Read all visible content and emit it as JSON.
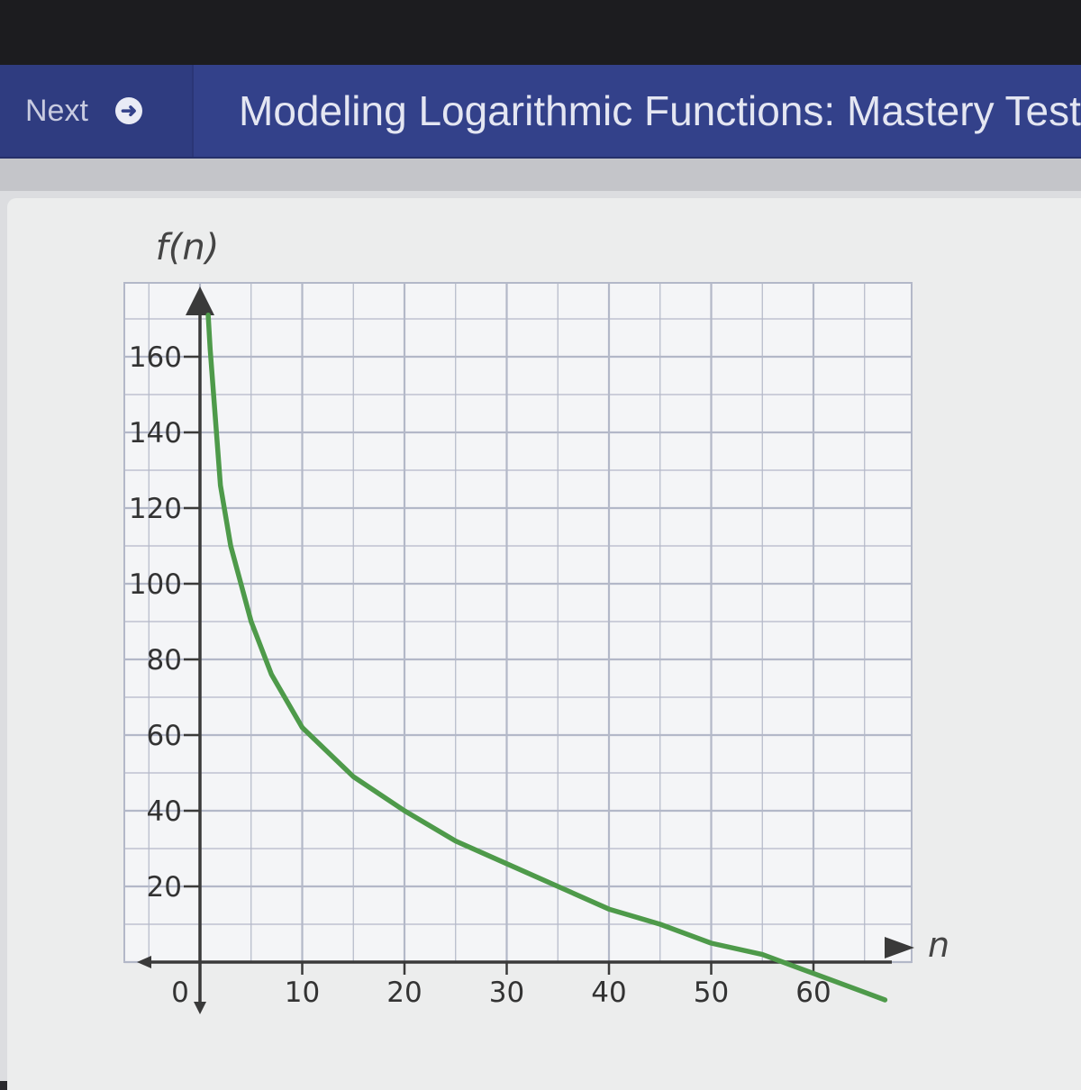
{
  "header": {
    "next_label": "Next",
    "next_icon": "arrow-circle-right-icon",
    "title": "Modeling Logarithmic Functions: Mastery Test"
  },
  "chart_data": {
    "type": "line",
    "xlabel": "n",
    "ylabel": "f(n)",
    "xlim": [
      0,
      70
    ],
    "ylim": [
      0,
      175
    ],
    "x_ticks": [
      "0",
      "10",
      "20",
      "30",
      "40",
      "50",
      "60"
    ],
    "y_ticks": [
      "20",
      "40",
      "60",
      "80",
      "100",
      "120",
      "140",
      "160"
    ],
    "x_ticks_at": [
      0,
      10,
      20,
      30,
      40,
      50,
      60
    ],
    "y_ticks_at": [
      20,
      40,
      60,
      80,
      100,
      120,
      140,
      160
    ],
    "grid": true,
    "minor_grid_step": {
      "x": 5,
      "y": 10
    },
    "series": [
      {
        "color": "#4e9a4a",
        "x": [
          0.8,
          1,
          2,
          3,
          5,
          7,
          10,
          15,
          20,
          25,
          30,
          35,
          40,
          45,
          50,
          55,
          60,
          65,
          67
        ],
        "y": [
          171,
          162,
          126,
          110,
          90,
          76,
          62,
          49,
          40,
          32,
          26,
          20,
          14,
          10,
          5,
          2,
          -3,
          -8,
          -10
        ]
      }
    ]
  },
  "colors": {
    "header_bg": "#33418a",
    "grid": "#b3b8c8",
    "axis": "#3a3a3a",
    "curve": "#4e9a4a"
  }
}
